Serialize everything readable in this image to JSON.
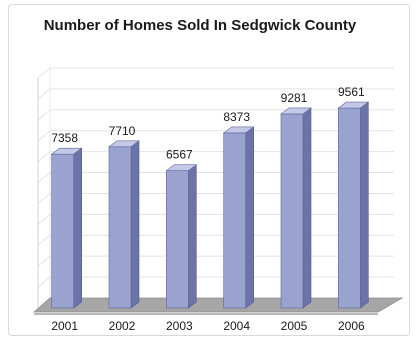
{
  "chart_data": {
    "type": "bar",
    "title": "Number of Homes Sold In Sedgwick County",
    "categories": [
      "2001",
      "2002",
      "2003",
      "2004",
      "2005",
      "2006"
    ],
    "values": [
      7358,
      7710,
      6567,
      8373,
      9281,
      9561
    ],
    "xlabel": "",
    "ylabel": "",
    "ylim": [
      0,
      11000
    ],
    "grid": true,
    "legend": "none",
    "bar_color": "#9aa3cf",
    "bar_side_color": "#6b73a8",
    "bar_top_color": "#c3c8e6",
    "floor_color": "#a6a6a6"
  }
}
